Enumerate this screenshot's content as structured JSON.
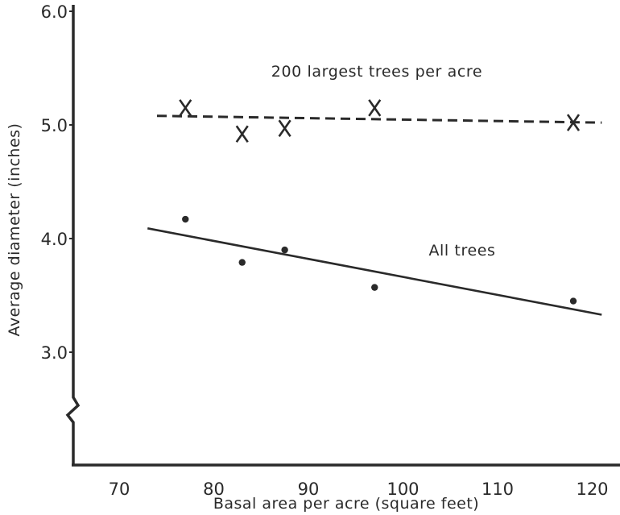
{
  "chart_data": {
    "type": "scatter",
    "title": "",
    "xlabel": "Basal area per acre (square feet)",
    "ylabel": "Average diameter (inches)",
    "xlim": [
      65,
      123
    ],
    "ylim": [
      2.0,
      6.05
    ],
    "axis_break": "y-axis between 0 and 3.0",
    "grid": false,
    "x_ticks": [
      70,
      80,
      90,
      100,
      110,
      120
    ],
    "y_ticks": [
      3.0,
      4.0,
      5.0,
      6.0
    ],
    "x_tick_labels": [
      "70",
      "80",
      "90",
      "100",
      "110",
      "120"
    ],
    "y_tick_labels": [
      "3.0",
      "4.0",
      "5.0",
      "6.0"
    ],
    "annotations": [
      "200 largest trees per acre",
      "All trees"
    ],
    "series": [
      {
        "name": "200 largest trees per acre",
        "marker": "x",
        "points": [
          {
            "x": 77,
            "y": 5.15
          },
          {
            "x": 83,
            "y": 4.92
          },
          {
            "x": 87.5,
            "y": 4.97
          },
          {
            "x": 97,
            "y": 5.15
          },
          {
            "x": 118,
            "y": 5.02
          }
        ],
        "trend": {
          "style": "dashed",
          "x": [
            74,
            121
          ],
          "y": [
            5.08,
            5.02
          ]
        }
      },
      {
        "name": "All trees",
        "marker": "dot",
        "points": [
          {
            "x": 77,
            "y": 4.17
          },
          {
            "x": 83,
            "y": 3.79
          },
          {
            "x": 87.5,
            "y": 3.9
          },
          {
            "x": 97,
            "y": 3.57
          },
          {
            "x": 118,
            "y": 3.45
          }
        ],
        "trend": {
          "style": "solid",
          "x": [
            73,
            121
          ],
          "y": [
            4.09,
            3.33
          ]
        }
      }
    ]
  }
}
